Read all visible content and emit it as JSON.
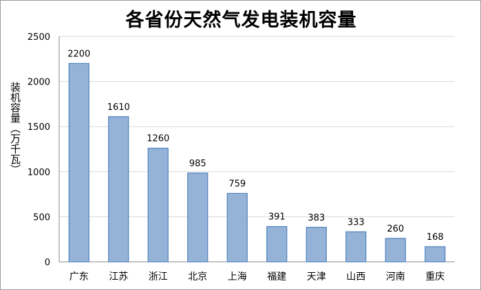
{
  "chart_data": {
    "type": "bar",
    "title": "各省份天然气发电装机容量",
    "xlabel": "",
    "ylabel": "装机容量（万千瓦）",
    "categories": [
      "广东",
      "江苏",
      "浙江",
      "北京",
      "上海",
      "福建",
      "天津",
      "山西",
      "河南",
      "重庆"
    ],
    "values": [
      2200,
      1610,
      1260,
      985,
      759,
      391,
      383,
      333,
      260,
      168
    ],
    "ylim": [
      0,
      2500
    ],
    "yticks": [
      0,
      500,
      1000,
      1500,
      2000,
      2500
    ],
    "grid": true,
    "legend": "none",
    "colors": {
      "bar_fill": "#95b3d7",
      "bar_edge": "#4f81bd",
      "grid": "#d9d9d9",
      "axis": "#888888"
    }
  }
}
